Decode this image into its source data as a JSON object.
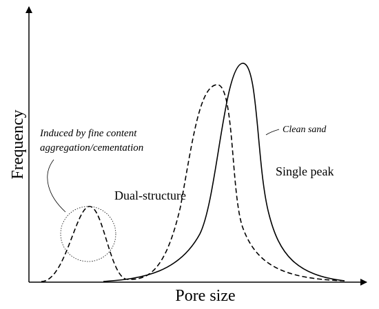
{
  "axes": {
    "y_label": "Frequency",
    "x_label": "Pore size"
  },
  "annotations": {
    "induced_line1": "Induced by fine content",
    "induced_line2": "aggregation/cementation",
    "dual": "Dual-structure",
    "single": "Single peak",
    "clean": "Clean sand"
  }
}
